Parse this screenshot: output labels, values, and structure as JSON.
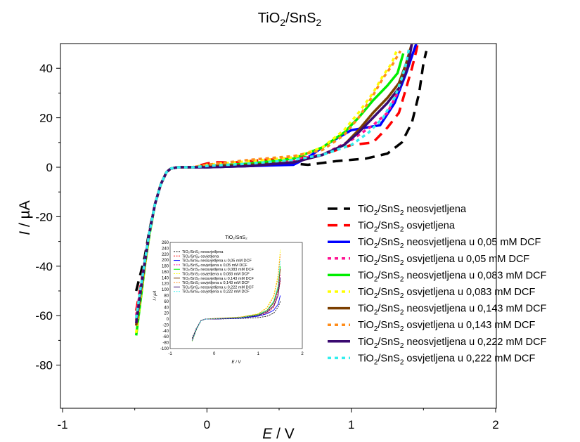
{
  "chart_data": {
    "type": "line",
    "title": {
      "main": "TiO",
      "sub1": "2",
      "mid": "/SnS",
      "sub2": "2"
    },
    "xlabel": {
      "var": "E",
      "unit": " / V"
    },
    "ylabel": {
      "var": "I",
      "unit": " / µA"
    },
    "xlim": [
      -1,
      2
    ],
    "ylim": [
      -90,
      50
    ],
    "xticks": [
      -1,
      0,
      1,
      2
    ],
    "yticks": [
      -80,
      -60,
      -40,
      -20,
      0,
      20,
      40
    ],
    "legend_position": "right",
    "series": [
      {
        "name_pre": "TiO",
        "name_mid": "/SnS",
        "name_post": " neosvjetljena",
        "color": "#000000",
        "dash": "long",
        "x": [
          -0.49,
          -0.46,
          -0.43,
          -0.4,
          -0.36,
          -0.32,
          -0.28,
          -0.25,
          -0.2,
          -0.1,
          0,
          0.3,
          0.6,
          0.7,
          0.9,
          1.1,
          1.25,
          1.35,
          1.42,
          1.47,
          1.5,
          1.52
        ],
        "y": [
          -50,
          -43,
          -36,
          -26,
          -15,
          -7,
          -2,
          -0.5,
          0,
          0,
          0,
          0.5,
          1.5,
          1,
          2.5,
          3.5,
          5.5,
          10,
          18,
          30,
          42,
          47
        ]
      },
      {
        "name_pre": "TiO",
        "name_mid": "/SnS",
        "name_post": " osvjetljena",
        "color": "#ff0000",
        "dash": "long",
        "x": [
          -0.49,
          -0.46,
          -0.43,
          -0.4,
          -0.36,
          -0.32,
          -0.28,
          -0.25,
          -0.2,
          -0.1,
          0,
          0.05,
          0.2,
          0.4,
          0.6,
          0.8,
          1,
          1.15,
          1.25,
          1.33,
          1.38,
          1.42,
          1.45,
          1.46
        ],
        "y": [
          -58,
          -48,
          -38,
          -27,
          -15,
          -7,
          -2,
          -0.5,
          0,
          0,
          1.5,
          2,
          2,
          3,
          3.5,
          5,
          9,
          10,
          16,
          22,
          32,
          40,
          47,
          50
        ]
      },
      {
        "name_pre": "TiO",
        "name_mid": "/SnS",
        "name_post": " neosvjetljena u 0,05 mM DCF",
        "color": "#0000ff",
        "dash": "solid",
        "x": [
          -0.49,
          -0.46,
          -0.43,
          -0.4,
          -0.36,
          -0.32,
          -0.28,
          -0.25,
          -0.2,
          -0.1,
          0,
          0.3,
          0.6,
          0.7,
          0.85,
          1,
          1.1,
          1.2,
          1.3,
          1.38,
          1.45
        ],
        "y": [
          -62,
          -50,
          -38,
          -27,
          -15,
          -7,
          -2,
          -0.5,
          0,
          0,
          0,
          0.5,
          1,
          4,
          10,
          15,
          16,
          17,
          26,
          38,
          50
        ]
      },
      {
        "name_pre": "TiO",
        "name_mid": "/SnS",
        "name_post": " osvjetljena u 0,05 mM DCF",
        "color": "#ff1493",
        "dash": "dot",
        "x": [
          -0.49,
          -0.46,
          -0.43,
          -0.4,
          -0.36,
          -0.32,
          -0.28,
          -0.25,
          -0.2,
          -0.1,
          0,
          0.3,
          0.6,
          0.8,
          1,
          1.15,
          1.25,
          1.32,
          1.38,
          1.42
        ],
        "y": [
          -60,
          -49,
          -38,
          -27,
          -15,
          -7,
          -2,
          -0.5,
          0,
          0,
          0.5,
          1.5,
          3,
          5,
          11,
          17,
          22,
          30,
          40,
          50
        ]
      },
      {
        "name_pre": "TiO",
        "name_mid": "/SnS",
        "name_post": " neosvjetljena u 0,083 mM DCF",
        "color": "#00ee00",
        "dash": "solid",
        "x": [
          -0.49,
          -0.46,
          -0.43,
          -0.4,
          -0.36,
          -0.32,
          -0.28,
          -0.25,
          -0.2,
          -0.1,
          0,
          0.3,
          0.6,
          0.8,
          0.95,
          1.05,
          1.15,
          1.25,
          1.32,
          1.36
        ],
        "y": [
          -68,
          -54,
          -40,
          -28,
          -15,
          -7,
          -2,
          -0.5,
          0,
          0,
          0.5,
          1.5,
          3.5,
          8,
          14,
          20,
          27,
          33,
          38,
          46
        ]
      },
      {
        "name_pre": "TiO",
        "name_mid": "/SnS",
        "name_post": " osvjetljena u 0,083 mM DCF",
        "color": "#ffff00",
        "dash": "dot",
        "x": [
          -0.49,
          -0.46,
          -0.43,
          -0.4,
          -0.36,
          -0.32,
          -0.28,
          -0.25,
          -0.2,
          -0.1,
          0,
          0.3,
          0.6,
          0.8,
          0.95,
          1.05,
          1.15,
          1.22,
          1.28,
          1.32
        ],
        "y": [
          -67,
          -53,
          -40,
          -28,
          -15,
          -7,
          -2,
          -0.5,
          0,
          0,
          1,
          2.5,
          4,
          8,
          15,
          22,
          30,
          37,
          42,
          48
        ]
      },
      {
        "name_pre": "TiO",
        "name_mid": "/SnS",
        "name_post": " neosvjetljena u 0,143 mM DCF",
        "color": "#7b3f00",
        "dash": "solid",
        "x": [
          -0.49,
          -0.46,
          -0.43,
          -0.4,
          -0.36,
          -0.32,
          -0.28,
          -0.25,
          -0.2,
          -0.1,
          0,
          0.3,
          0.6,
          0.8,
          0.95,
          1.05,
          1.15,
          1.25,
          1.33,
          1.38,
          1.42
        ],
        "y": [
          -64,
          -51,
          -39,
          -27,
          -15,
          -7,
          -2,
          -0.5,
          0,
          0,
          0.5,
          1,
          2,
          5,
          9,
          15,
          22,
          28,
          34,
          42,
          50
        ]
      },
      {
        "name_pre": "TiO",
        "name_mid": "/SnS",
        "name_post": " osvjetljena u 0,143 mM DCF",
        "color": "#ff8c1a",
        "dash": "dot",
        "x": [
          -0.49,
          -0.46,
          -0.43,
          -0.4,
          -0.36,
          -0.32,
          -0.28,
          -0.25,
          -0.2,
          -0.1,
          0,
          0.3,
          0.6,
          0.8,
          0.95,
          1.05,
          1.15,
          1.22,
          1.28,
          1.32,
          1.34
        ],
        "y": [
          -62,
          -50,
          -38,
          -27,
          -15,
          -7,
          -2,
          -0.5,
          0,
          0,
          1,
          3,
          4.5,
          7,
          13,
          20,
          29,
          36,
          41,
          45,
          47
        ]
      },
      {
        "name_pre": "TiO",
        "name_mid": "/SnS",
        "name_post": " neosvjetljena u 0,222 mM DCF",
        "color": "#3a0a70",
        "dash": "solid",
        "x": [
          -0.49,
          -0.46,
          -0.43,
          -0.4,
          -0.36,
          -0.32,
          -0.28,
          -0.25,
          -0.2,
          -0.1,
          0,
          0.3,
          0.6,
          0.8,
          0.95,
          1.05,
          1.15,
          1.25,
          1.33,
          1.39,
          1.42
        ],
        "y": [
          -63,
          -50,
          -38,
          -27,
          -15,
          -7,
          -2,
          -0.5,
          0,
          0,
          0,
          0.5,
          2,
          5,
          9,
          14,
          20,
          26,
          32,
          40,
          50
        ]
      },
      {
        "name_pre": "TiO",
        "name_mid": "/SnS",
        "name_post": " osvjetljena u 0,222 mM DCF",
        "color": "#33eeee",
        "dash": "dot",
        "x": [
          -0.49,
          -0.46,
          -0.43,
          -0.4,
          -0.36,
          -0.32,
          -0.28,
          -0.25,
          -0.2,
          -0.1,
          0,
          0.3,
          0.6,
          0.8,
          1,
          1.12,
          1.22,
          1.3,
          1.35,
          1.38,
          1.4
        ],
        "y": [
          -61,
          -49,
          -38,
          -27,
          -15,
          -7,
          -2,
          -0.5,
          0,
          0,
          0.5,
          1.5,
          3,
          5,
          9,
          14,
          20,
          28,
          36,
          42,
          48
        ]
      }
    ],
    "inset": {
      "title": "TiO₂/SnS₂",
      "xlabel": "E / V",
      "ylabel": "I / µA",
      "xlim": [
        -1,
        2
      ],
      "ylim": [
        -100,
        260
      ],
      "xticks": [
        -1,
        0,
        1,
        2
      ],
      "yticks": [
        -100,
        -80,
        -60,
        -40,
        -20,
        0,
        20,
        40,
        60,
        80,
        100,
        120,
        140,
        160,
        180,
        200,
        220,
        240,
        260
      ],
      "legend": [
        "TiO₂/SnS₂ neosvjetljena",
        "TiO₂/SnS₂ osvjetljena",
        "TiO₂/SnS₂ neosvjetljena u 0,05 mM DCF",
        "TiO₂/SnS₂ osvjetljena u 0,05 mM DCF",
        "TiO₂/SnS₂ neosvjetljena u 0,083 mM DCF",
        "TiO₂/SnS₂ osvjetljena u 0,083 mM DCF",
        "TiO₂/SnS₂ neosvjetljena u 0,143 mM DCF",
        "TiO₂/SnS₂ osvjetljena u 0,143 mM DCF",
        "TiO₂/SnS₂ neosvjetljena u 0,222 mM DCF",
        "TiO₂/SnS₂ osvjetljena u 0,222 mM DCF"
      ],
      "series_x": [
        -0.5,
        -0.4,
        -0.3,
        -0.2,
        0,
        0.6,
        1,
        1.2,
        1.35,
        1.45,
        1.5
      ],
      "series_y": [
        [
          -65,
          -30,
          -5,
          0,
          0,
          2,
          5,
          10,
          20,
          40,
          60
        ],
        [
          -70,
          -32,
          -5,
          0,
          2,
          5,
          10,
          20,
          40,
          80,
          130
        ],
        [
          -72,
          -33,
          -5,
          0,
          0,
          3,
          10,
          18,
          30,
          50,
          80
        ],
        [
          -70,
          -32,
          -5,
          0,
          1,
          5,
          12,
          25,
          45,
          90,
          150
        ],
        [
          -75,
          -34,
          -5,
          0,
          1,
          6,
          16,
          30,
          60,
          110,
          180
        ],
        [
          -74,
          -34,
          -5,
          0,
          2,
          7,
          18,
          40,
          80,
          150,
          235
        ],
        [
          -73,
          -33,
          -5,
          0,
          1,
          5,
          14,
          28,
          55,
          100,
          170
        ],
        [
          -72,
          -33,
          -5,
          0,
          2,
          7,
          17,
          38,
          75,
          140,
          220
        ],
        [
          -73,
          -33,
          -5,
          0,
          0,
          4,
          12,
          24,
          45,
          80,
          140
        ],
        [
          -72,
          -33,
          -5,
          0,
          1,
          5,
          14,
          30,
          60,
          110,
          200
        ]
      ]
    }
  }
}
